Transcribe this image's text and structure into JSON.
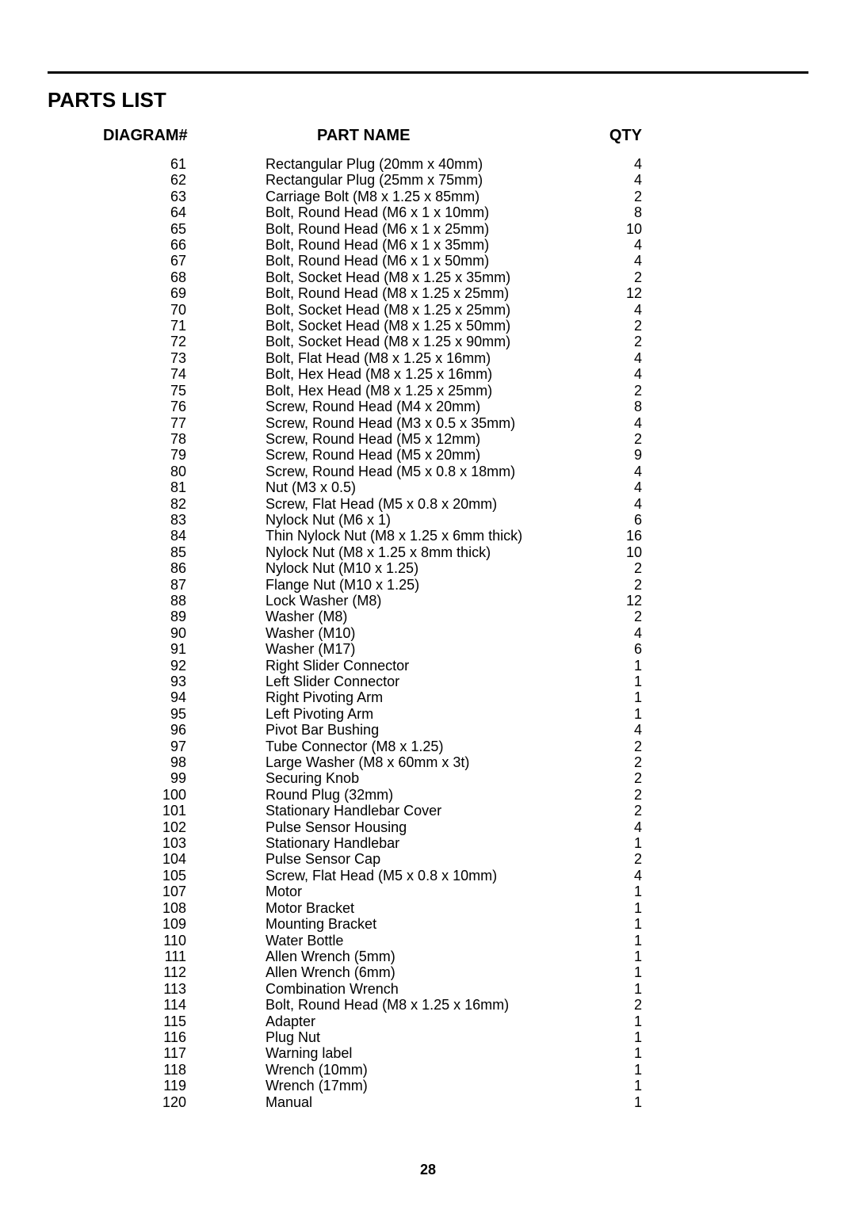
{
  "title": "PARTS LIST",
  "headers": {
    "diagram": "DIAGRAM#",
    "partname": "PART NAME",
    "qty": "QTY"
  },
  "page_number": "28",
  "style": {
    "body_width": 1080,
    "body_height": 1527,
    "background": "#ffffff",
    "text_color": "#000000",
    "title_fontsize": 26,
    "header_fontsize": 20,
    "row_fontsize": 18,
    "row_lineheight": 20.4,
    "hr_weight": 3,
    "pageno_fontsize": 18
  },
  "rows": [
    {
      "d": "61",
      "p": "Rectangular Plug (20mm x 40mm)",
      "q": "4"
    },
    {
      "d": "62",
      "p": "Rectangular Plug (25mm x 75mm)",
      "q": "4"
    },
    {
      "d": "63",
      "p": "Carriage Bolt (M8 x 1.25 x 85mm)",
      "q": "2"
    },
    {
      "d": "64",
      "p": "Bolt, Round Head (M6 x 1 x 10mm)",
      "q": "8"
    },
    {
      "d": "65",
      "p": "Bolt, Round Head (M6 x 1 x 25mm)",
      "q": "10"
    },
    {
      "d": "66",
      "p": "Bolt, Round Head (M6 x 1 x 35mm)",
      "q": "4"
    },
    {
      "d": "67",
      "p": "Bolt, Round Head (M6 x 1 x 50mm)",
      "q": "4"
    },
    {
      "d": "68",
      "p": "Bolt, Socket Head (M8 x 1.25 x 35mm)",
      "q": "2"
    },
    {
      "d": "69",
      "p": "Bolt, Round Head (M8 x 1.25 x 25mm)",
      "q": "12"
    },
    {
      "d": "70",
      "p": "Bolt, Socket Head (M8 x 1.25 x 25mm)",
      "q": "4"
    },
    {
      "d": "71",
      "p": "Bolt, Socket Head (M8 x 1.25 x 50mm)",
      "q": "2"
    },
    {
      "d": "72",
      "p": "Bolt, Socket Head (M8 x 1.25 x 90mm)",
      "q": "2"
    },
    {
      "d": "73",
      "p": "Bolt, Flat Head (M8 x 1.25 x 16mm)",
      "q": "4"
    },
    {
      "d": "74",
      "p": "Bolt, Hex Head (M8 x 1.25 x 16mm)",
      "q": "4"
    },
    {
      "d": "75",
      "p": "Bolt, Hex Head (M8 x 1.25 x 25mm)",
      "q": "2"
    },
    {
      "d": "76",
      "p": "Screw, Round Head (M4 x 20mm)",
      "q": "8"
    },
    {
      "d": "77",
      "p": "Screw, Round Head (M3 x 0.5 x 35mm)",
      "q": "4"
    },
    {
      "d": "78",
      "p": "Screw, Round Head (M5 x 12mm)",
      "q": "2"
    },
    {
      "d": "79",
      "p": "Screw, Round Head (M5 x 20mm)",
      "q": "9"
    },
    {
      "d": "80",
      "p": "Screw, Round Head (M5 x 0.8 x 18mm)",
      "q": "4"
    },
    {
      "d": "81",
      "p": "Nut (M3 x 0.5)",
      "q": "4"
    },
    {
      "d": "82",
      "p": "Screw, Flat Head (M5 x 0.8 x 20mm)",
      "q": "4"
    },
    {
      "d": "83",
      "p": "Nylock Nut (M6 x 1)",
      "q": "6"
    },
    {
      "d": "84",
      "p": "Thin Nylock Nut (M8 x 1.25 x 6mm thick)",
      "q": "16"
    },
    {
      "d": "85",
      "p": "Nylock Nut (M8 x 1.25 x 8mm thick)",
      "q": "10"
    },
    {
      "d": "86",
      "p": "Nylock Nut (M10 x 1.25)",
      "q": "2"
    },
    {
      "d": "87",
      "p": "Flange Nut (M10 x 1.25)",
      "q": "2"
    },
    {
      "d": "88",
      "p": "Lock Washer (M8)",
      "q": "12"
    },
    {
      "d": "89",
      "p": "Washer (M8)",
      "q": "2"
    },
    {
      "d": "90",
      "p": "Washer (M10)",
      "q": "4"
    },
    {
      "d": "91",
      "p": "Washer (M17)",
      "q": "6"
    },
    {
      "d": "92",
      "p": "Right Slider Connector",
      "q": "1"
    },
    {
      "d": "93",
      "p": "Left Slider Connector",
      "q": "1"
    },
    {
      "d": "94",
      "p": "Right Pivoting Arm",
      "q": "1"
    },
    {
      "d": "95",
      "p": "Left Pivoting Arm",
      "q": "1"
    },
    {
      "d": "96",
      "p": "Pivot Bar Bushing",
      "q": "4"
    },
    {
      "d": "97",
      "p": "Tube Connector (M8 x 1.25)",
      "q": "2"
    },
    {
      "d": "98",
      "p": "Large Washer (M8 x 60mm x 3t)",
      "q": "2"
    },
    {
      "d": "99",
      "p": "Securing Knob",
      "q": "2"
    },
    {
      "d": "100",
      "p": "Round Plug (32mm)",
      "q": "2"
    },
    {
      "d": "101",
      "p": "Stationary Handlebar Cover",
      "q": "2"
    },
    {
      "d": "102",
      "p": "Pulse Sensor Housing",
      "q": "4"
    },
    {
      "d": "103",
      "p": "Stationary Handlebar",
      "q": "1"
    },
    {
      "d": "104",
      "p": "Pulse Sensor Cap",
      "q": "2"
    },
    {
      "d": "105",
      "p": "Screw, Flat Head (M5 x 0.8 x 10mm)",
      "q": "4"
    },
    {
      "d": "107",
      "p": "Motor",
      "q": "1"
    },
    {
      "d": "108",
      "p": "Motor Bracket",
      "q": "1"
    },
    {
      "d": "109",
      "p": "Mounting Bracket",
      "q": "1"
    },
    {
      "d": "110",
      "p": "Water Bottle",
      "q": "1"
    },
    {
      "d": "111",
      "p": "Allen Wrench (5mm)",
      "q": "1"
    },
    {
      "d": "112",
      "p": "Allen Wrench (6mm)",
      "q": "1"
    },
    {
      "d": "113",
      "p": "Combination Wrench",
      "q": "1"
    },
    {
      "d": "114",
      "p": "Bolt, Round Head (M8 x 1.25 x 16mm)",
      "q": "2"
    },
    {
      "d": "115",
      "p": "Adapter",
      "q": "1"
    },
    {
      "d": "116",
      "p": "Plug Nut",
      "q": "1"
    },
    {
      "d": "117",
      "p": "Warning label",
      "q": "1"
    },
    {
      "d": "118",
      "p": "Wrench (10mm)",
      "q": "1"
    },
    {
      "d": "119",
      "p": "Wrench (17mm)",
      "q": "1"
    },
    {
      "d": "120",
      "p": "Manual",
      "q": "1"
    }
  ]
}
